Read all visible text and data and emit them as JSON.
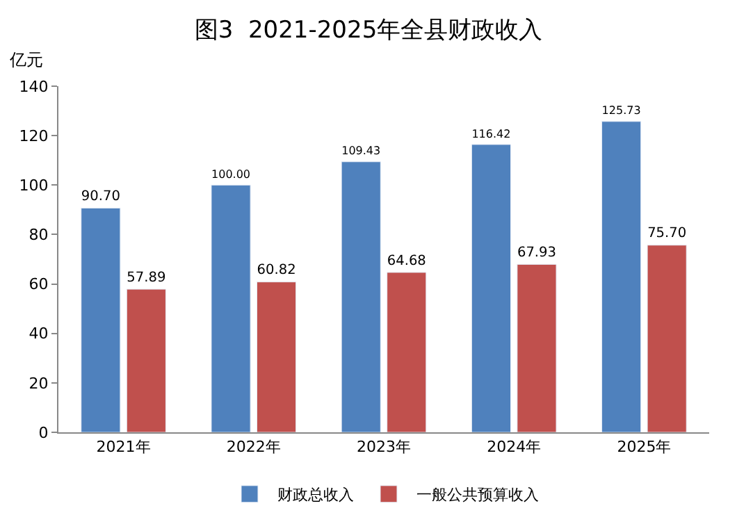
{
  "chart_data": {
    "type": "bar",
    "title": "图3  2021-2025年全县财政收入",
    "ylabel": "亿元",
    "categories": [
      "2021年",
      "2022年",
      "2023年",
      "2024年",
      "2025年"
    ],
    "series": [
      {
        "name": "财政总收入",
        "color": "#4f81bd",
        "values": [
          90.7,
          100.0,
          109.43,
          116.42,
          125.73
        ],
        "value_labels": [
          "90.70",
          "100.00",
          "109.43",
          "116.42",
          "125.73"
        ]
      },
      {
        "name": "一般公共预算收入",
        "color": "#c0504d",
        "values": [
          57.89,
          60.82,
          64.68,
          67.93,
          75.7
        ],
        "value_labels": [
          "57.89",
          "60.82",
          "64.68",
          "67.93",
          "75.70"
        ]
      }
    ],
    "ylim": [
      0,
      140
    ],
    "yticks": [
      0,
      20,
      40,
      60,
      80,
      100,
      120,
      140
    ],
    "legend": "bottom"
  }
}
